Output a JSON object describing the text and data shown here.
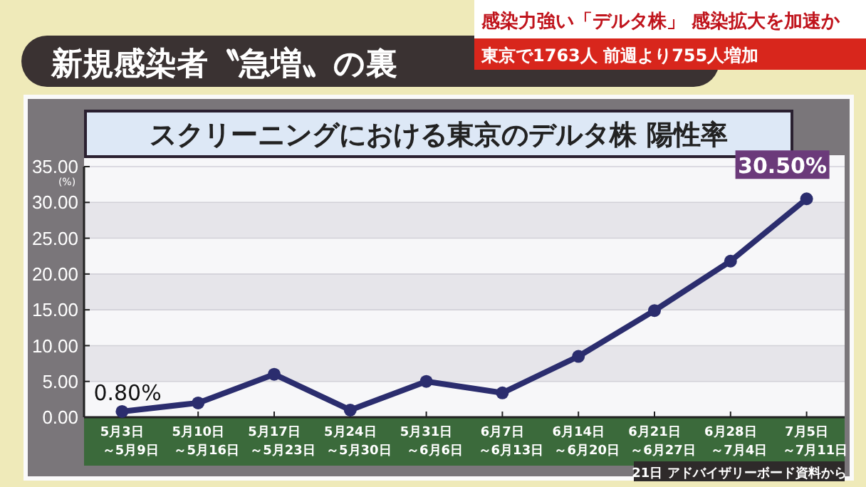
{
  "chart_data": {
    "type": "line",
    "title": "新規感染者〝急増〟の裏",
    "subtitle": "スクリーニングにおける東京のデルタ株 陽性率",
    "ylabel": "(%)",
    "categories": [
      "5月3日～5月9日",
      "5月10日～5月16日",
      "5月17日～5月23日",
      "5月24日～5月30日",
      "5月31日～6月6日",
      "6月7日～6月13日",
      "6月14日～6月20日",
      "6月21日～6月27日",
      "6月28日～7月4日",
      "7月5日～7月11日"
    ],
    "series": [
      {
        "color": "#2b2d6e",
        "values": [
          0.8,
          2.0,
          6.0,
          1.0,
          5.0,
          3.4,
          8.5,
          14.9,
          21.8,
          30.5
        ]
      }
    ],
    "ylim": [
      0,
      35
    ],
    "yticks": [
      {
        "value": 0,
        "label": "0.00"
      },
      {
        "value": 5,
        "label": "5.00"
      },
      {
        "value": 10,
        "label": "10.00"
      },
      {
        "value": 15,
        "label": "15.00"
      },
      {
        "value": 20,
        "label": "20.00"
      },
      {
        "value": 25,
        "label": "25.00"
      },
      {
        "value": 30,
        "label": "30.00"
      },
      {
        "value": 35,
        "label": "35.00"
      }
    ],
    "grid": "y",
    "marker": "circle",
    "line_style": "solid",
    "annotations": [
      "感染力強い「デルタ株」 感染拡大を加速か",
      "東京で1763人 前週より755人増加",
      "21日 アドバイザリーボード資料から",
      {
        "text": "0.80%",
        "x": "5月3日～5月9日",
        "y": 0.8
      },
      {
        "text": "30.50%",
        "x": "7月5日～7月11日",
        "y": 30.5
      }
    ]
  }
}
